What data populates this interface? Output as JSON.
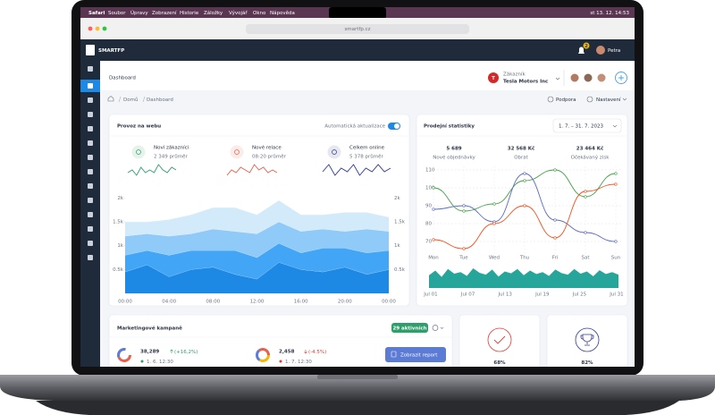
{
  "menu_bar": {
    "items": [
      "Safari",
      "Soubor",
      "Úpravy",
      "Zobrazení",
      "Historie",
      "Záložky",
      "Vývojář",
      "Okno",
      "Nápověda"
    ],
    "clock": "st 13. 12. 14:53"
  },
  "browser": {
    "url": "smartfp.cz"
  },
  "header": {
    "logo": "SMARTFP",
    "notifications": "2",
    "user": "Petra"
  },
  "page": {
    "title": "Dashboard",
    "customer_label": "Zákazník",
    "customer": "Tesla Motors Inc",
    "breadcrumb": [
      "Domů",
      "Dashboard"
    ],
    "support": "Podpora",
    "settings": "Nastavení"
  },
  "traffic": {
    "title": "Provoz na webu",
    "toggle_label": "Automatická aktualizace",
    "stats": [
      {
        "label": "Noví zákazníci",
        "value": "2 349 průměr",
        "color": "#2e9e6b",
        "spark": [
          5,
          6,
          4,
          7,
          5,
          6,
          5,
          8,
          6,
          5,
          7,
          6
        ]
      },
      {
        "label": "Nové relace",
        "value": "08:20 průměr",
        "color": "#e8604c",
        "spark": [
          4,
          6,
          5,
          7,
          6,
          5,
          8,
          6,
          7,
          5,
          6,
          5
        ]
      },
      {
        "label": "Celkem online",
        "value": "5 378 průměr",
        "color": "#2f3c8f",
        "spark": [
          5,
          7,
          4,
          6,
          5,
          7,
          4,
          6,
          5,
          7,
          5,
          6
        ]
      }
    ],
    "chart": {
      "type": "area",
      "ylim": [
        0,
        2250
      ],
      "yticks": [
        {
          "value": 500,
          "label": "0.5k"
        },
        {
          "value": 1000,
          "label": "1k"
        },
        {
          "value": 1500,
          "label": "1.5k"
        },
        {
          "value": 2000,
          "label": "2k"
        }
      ],
      "x_labels": [
        "00:00",
        "04:00",
        "08:00",
        "12:00",
        "16:00",
        "20:00",
        "00:00"
      ],
      "series": [
        {
          "color": "#1e88e5",
          "values": [
            450,
            600,
            350,
            500,
            550,
            400,
            300,
            650,
            500,
            450,
            550,
            400,
            500
          ]
        },
        {
          "color": "#42a5f5",
          "values": [
            350,
            300,
            450,
            400,
            350,
            500,
            450,
            400,
            350,
            500,
            400,
            450,
            400
          ]
        },
        {
          "color": "#90caf9",
          "values": [
            400,
            350,
            400,
            350,
            450,
            400,
            500,
            450,
            450,
            400,
            350,
            500,
            400
          ]
        },
        {
          "color": "#d3eafb",
          "values": [
            300,
            250,
            350,
            400,
            450,
            500,
            400,
            450,
            350,
            300,
            400,
            350,
            300
          ]
        }
      ]
    }
  },
  "sales": {
    "title": "Prodejní statistiky",
    "date_range": "1. 7. – 31. 7. 2023",
    "stats": [
      {
        "value": "5 689",
        "label": "Nové objednávky"
      },
      {
        "value": "32 568 Kč",
        "label": "Obrat"
      },
      {
        "value": "23 464 Kč",
        "label": "Očekávaný zisk"
      }
    ],
    "chart": {
      "type": "line",
      "categories": [
        "Mon",
        "Tue",
        "Wed",
        "Thu",
        "Fri",
        "Sat",
        "Sun"
      ],
      "ylim": [
        63,
        112
      ],
      "yticks": [
        70,
        80,
        90,
        100,
        110
      ],
      "series": [
        {
          "color": "#43a047",
          "values": [
            100,
            87,
            91,
            104,
            110,
            95,
            108
          ]
        },
        {
          "color": "#5c6bc0",
          "values": [
            88,
            90,
            81,
            108,
            82,
            75,
            70
          ]
        },
        {
          "color": "#f4511e",
          "values": [
            71,
            66,
            80,
            90,
            72,
            98,
            102
          ]
        }
      ]
    },
    "mini": {
      "color": "#26a69a",
      "x_labels": [
        "Jul 01",
        "Jul 07",
        "Jul 13",
        "Jul 19",
        "Jul 25",
        "Jul 31"
      ],
      "values": [
        40,
        55,
        35,
        60,
        45,
        50,
        38,
        62,
        48,
        42,
        58,
        36,
        52,
        46,
        60,
        40,
        55,
        44,
        50,
        38,
        58,
        47,
        42,
        60,
        45,
        52,
        37,
        56,
        44,
        50,
        42
      ]
    }
  },
  "campaigns": {
    "title": "Marketingové kampaně",
    "badge": "29 aktivních",
    "items": [
      {
        "value": "38,289",
        "change": "(+16,2%)",
        "date": "1. 6. 12:30"
      },
      {
        "value": "2,458",
        "change": "(-4.5%)",
        "date": "1. 7. 12:30"
      }
    ],
    "button": "Zobrazit report"
  },
  "kpis": [
    {
      "value": "68%"
    },
    {
      "value": "82%"
    }
  ]
}
